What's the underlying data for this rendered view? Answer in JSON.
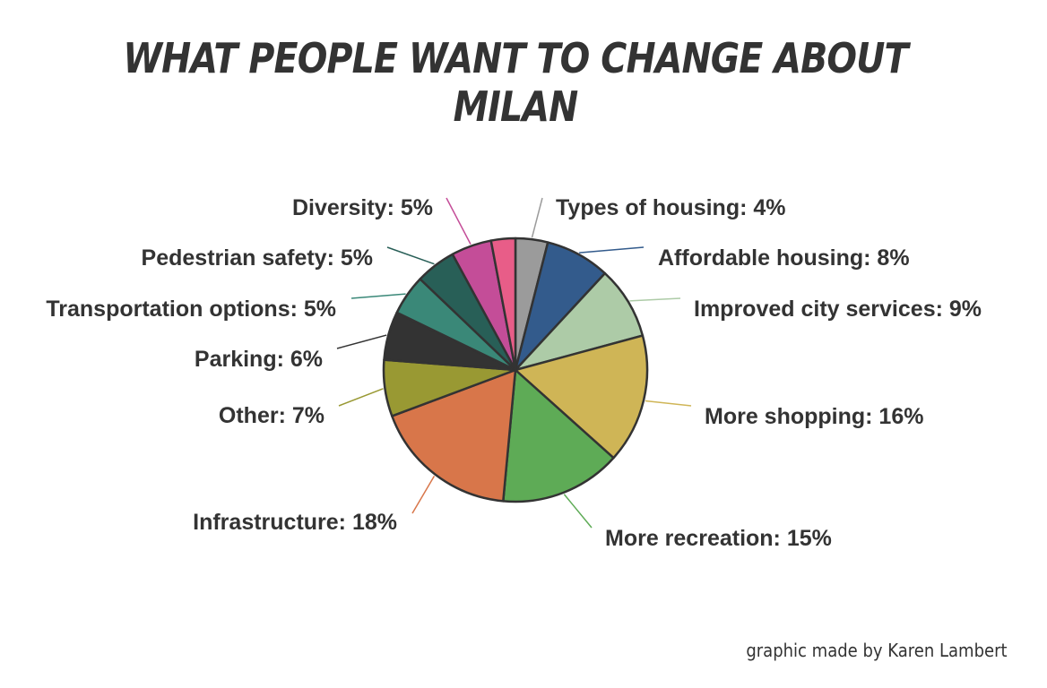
{
  "chart_data": {
    "type": "pie",
    "title": "What people want to change about Milan",
    "start_order": "clockwise from top",
    "slices": [
      {
        "label": "Types of housing: 4%",
        "value": 4,
        "color": "#9b9b9b"
      },
      {
        "label": "Affordable housing: 8%",
        "value": 8,
        "color": "#335b8c"
      },
      {
        "label": "Improved city services: 9%",
        "value": 9,
        "color": "#adcba7"
      },
      {
        "label": "More shopping: 16%",
        "value": 16,
        "color": "#cfb556"
      },
      {
        "label": "More recreation: 15%",
        "value": 15,
        "color": "#5eab56"
      },
      {
        "label": "Infrastructure: 18%",
        "value": 18,
        "color": "#d8764a"
      },
      {
        "label": "Other: 7%",
        "value": 7,
        "color": "#999933"
      },
      {
        "label": "Parking: 6%",
        "value": 6,
        "color": "#333333"
      },
      {
        "label": "Transportation options: 5%",
        "value": 5,
        "color": "#3a8878"
      },
      {
        "label": "Pedestrian safety: 5%",
        "value": 5,
        "color": "#285f57"
      },
      {
        "label": "Diversity: 5%",
        "value": 5,
        "color": "#c44d98"
      },
      {
        "label": "",
        "value": 3,
        "color": "#e85d88"
      }
    ]
  },
  "credit": "graphic made by Karen Lambert"
}
